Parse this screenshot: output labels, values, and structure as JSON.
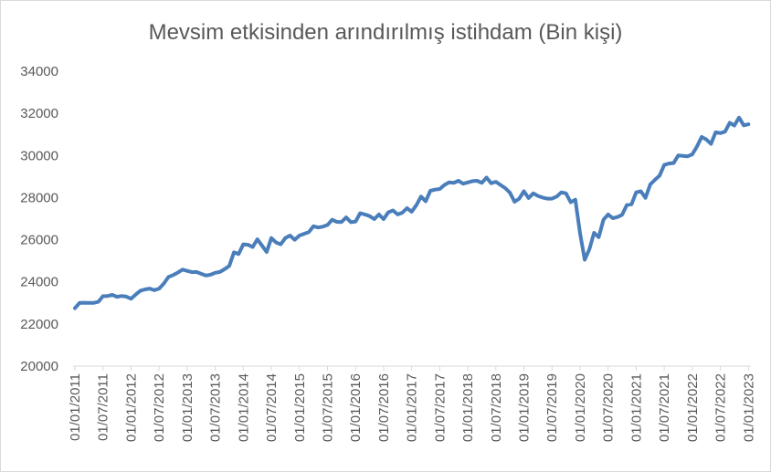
{
  "chart_data": {
    "type": "line",
    "title": "Mevsim etkisinden arındırılmış istihdam (Bin kişi)",
    "xlabel": "",
    "ylabel": "",
    "ylim": [
      20000,
      34000
    ],
    "y_ticks": [
      20000,
      22000,
      24000,
      26000,
      28000,
      30000,
      32000,
      34000
    ],
    "x_tick_labels": [
      "01/01/2011",
      "01/07/2011",
      "01/01/2012",
      "01/07/2012",
      "01/01/2013",
      "01/07/2013",
      "01/01/2014",
      "01/07/2014",
      "01/01/2015",
      "01/07/2015",
      "01/01/2016",
      "01/07/2016",
      "01/01/2017",
      "01/07/2017",
      "01/01/2018",
      "01/07/2018",
      "01/01/2019",
      "01/07/2019",
      "01/01/2020",
      "01/07/2020",
      "01/01/2021",
      "01/07/2021",
      "01/01/2022",
      "01/07/2022",
      "01/01/2023"
    ],
    "grid": false,
    "legend": "none",
    "color": "#4a7ebb",
    "series": [
      {
        "x_start": "2011-01",
        "frequency": "monthly",
        "values": [
          22750,
          23000,
          23010,
          23000,
          23000,
          23050,
          23320,
          23330,
          23380,
          23290,
          23330,
          23300,
          23200,
          23400,
          23580,
          23640,
          23680,
          23600,
          23680,
          23920,
          24230,
          24320,
          24440,
          24580,
          24520,
          24460,
          24470,
          24380,
          24300,
          24340,
          24430,
          24470,
          24600,
          24760,
          25400,
          25320,
          25780,
          25760,
          25650,
          26020,
          25720,
          25420,
          26080,
          25870,
          25780,
          26080,
          26200,
          26000,
          26200,
          26280,
          26360,
          26640,
          26580,
          26620,
          26700,
          26950,
          26850,
          26840,
          27060,
          26830,
          26860,
          27260,
          27200,
          27120,
          26980,
          27200,
          26980,
          27300,
          27390,
          27200,
          27280,
          27500,
          27330,
          27640,
          28050,
          27830,
          28320,
          28380,
          28410,
          28600,
          28720,
          28700,
          28800,
          28660,
          28720,
          28780,
          28800,
          28700,
          28950,
          28680,
          28750,
          28600,
          28450,
          28230,
          27800,
          27950,
          28300,
          27980,
          28200,
          28080,
          28000,
          27950,
          27950,
          28050,
          28250,
          28200,
          27780,
          27900,
          26300,
          25050,
          25550,
          26330,
          26120,
          26950,
          27200,
          27020,
          27080,
          27180,
          27650,
          27680,
          28250,
          28300,
          27990,
          28620,
          28840,
          29040,
          29550,
          29620,
          29640,
          30000,
          29980,
          29960,
          30050,
          30430,
          30880,
          30760,
          30550,
          31100,
          31060,
          31130,
          31550,
          31420,
          31800,
          31430,
          31480
        ]
      }
    ]
  }
}
